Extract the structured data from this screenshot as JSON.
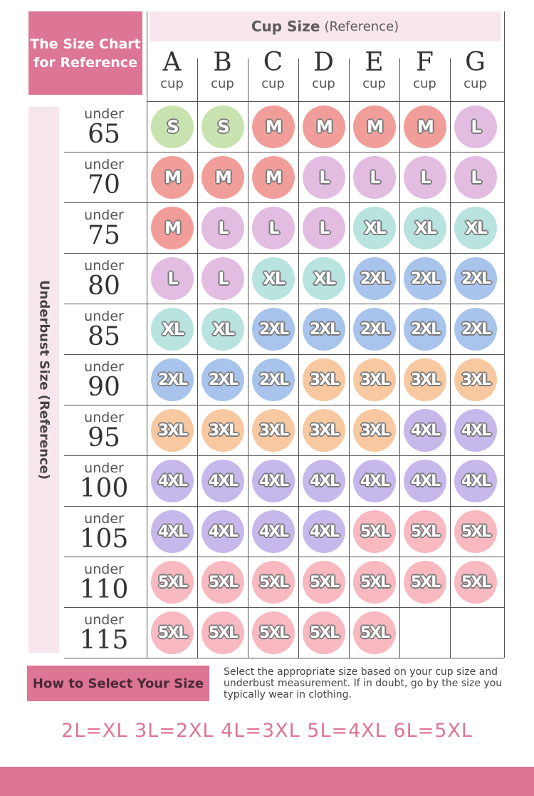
{
  "title": {
    "line1": "The Size Chart",
    "line2": "for Reference"
  },
  "cup_header": {
    "main": "Cup Size",
    "sub": "(Reference)"
  },
  "cups": [
    {
      "letter": "A",
      "word": "cup"
    },
    {
      "letter": "B",
      "word": "cup"
    },
    {
      "letter": "C",
      "word": "cup"
    },
    {
      "letter": "D",
      "word": "cup"
    },
    {
      "letter": "E",
      "word": "cup"
    },
    {
      "letter": "F",
      "word": "cup"
    },
    {
      "letter": "G",
      "word": "cup"
    }
  ],
  "underbust_label": "Underbust Size (Reference)",
  "rows": [
    {
      "under": "under",
      "band": "65",
      "sizes": [
        "S",
        "S",
        "M",
        "M",
        "M",
        "M",
        "L"
      ]
    },
    {
      "under": "under",
      "band": "70",
      "sizes": [
        "M",
        "M",
        "M",
        "L",
        "L",
        "L",
        "L"
      ]
    },
    {
      "under": "under",
      "band": "75",
      "sizes": [
        "M",
        "L",
        "L",
        "L",
        "XL",
        "XL",
        "XL"
      ]
    },
    {
      "under": "under",
      "band": "80",
      "sizes": [
        "L",
        "L",
        "XL",
        "XL",
        "2XL",
        "2XL",
        "2XL"
      ]
    },
    {
      "under": "under",
      "band": "85",
      "sizes": [
        "XL",
        "XL",
        "2XL",
        "2XL",
        "2XL",
        "2XL",
        "2XL"
      ]
    },
    {
      "under": "under",
      "band": "90",
      "sizes": [
        "2XL",
        "2XL",
        "2XL",
        "3XL",
        "3XL",
        "3XL",
        "3XL"
      ]
    },
    {
      "under": "under",
      "band": "95",
      "sizes": [
        "3XL",
        "3XL",
        "3XL",
        "3XL",
        "3XL",
        "4XL",
        "4XL"
      ]
    },
    {
      "under": "under",
      "band": "100",
      "sizes": [
        "4XL",
        "4XL",
        "4XL",
        "4XL",
        "4XL",
        "4XL",
        "4XL"
      ]
    },
    {
      "under": "under",
      "band": "105",
      "sizes": [
        "4XL",
        "4XL",
        "4XL",
        "4XL",
        "5XL",
        "5XL",
        "5XL"
      ]
    },
    {
      "under": "under",
      "band": "110",
      "sizes": [
        "5XL",
        "5XL",
        "5XL",
        "5XL",
        "5XL",
        "5XL",
        "5XL"
      ]
    },
    {
      "under": "under",
      "band": "115",
      "sizes": [
        "5XL",
        "5XL",
        "5XL",
        "5XL",
        "5XL",
        "",
        ""
      ]
    }
  ],
  "size_colors": {
    "S": "#c9e3b0",
    "M": "#f19e9a",
    "L": "#e2bde1",
    "XL": "#b8e3df",
    "2XL": "#a8c4ec",
    "3XL": "#f8c9a1",
    "4XL": "#c7b8ec",
    "5XL": "#f8b9c1"
  },
  "how_to": {
    "button": "How to Select Your Size",
    "text": "Select the appropriate size based on your cup size and underbust measurement. If in doubt, go by the size you typically wear in clothing."
  },
  "equivalence": "2L=XL 3L=2XL 4L=3XL 5L=4XL 6L=5XL"
}
